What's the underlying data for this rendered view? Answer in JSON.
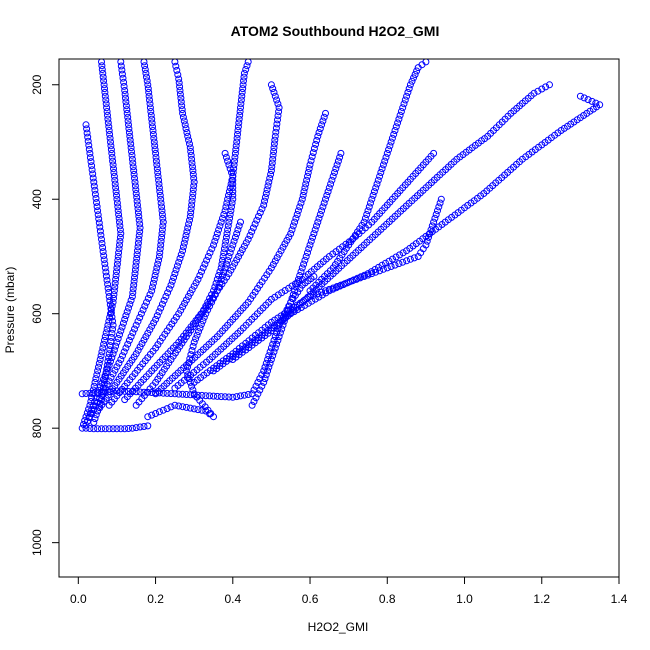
{
  "chart_data": {
    "type": "scatter",
    "title": "ATOM2 Southbound H2O2_GMI",
    "xlabel": "H2O2_GMI",
    "ylabel": "Pressure (mbar)",
    "xlim": [
      -0.05,
      1.4
    ],
    "ylim": [
      1060,
      155
    ],
    "y_reversed": true,
    "grid": false,
    "legend": "none",
    "x_ticks": [
      0.0,
      0.2,
      0.4,
      0.6,
      0.8,
      1.0,
      1.2,
      1.4
    ],
    "x_tick_labels": [
      "0.0",
      "0.2",
      "0.4",
      "0.6",
      "0.8",
      "1.0",
      "1.2",
      "1.4"
    ],
    "y_ticks": [
      200,
      400,
      600,
      800,
      1000
    ],
    "y_tick_labels": [
      "200",
      "400",
      "600",
      "800",
      "1000"
    ],
    "marker": "open-circle",
    "color": "#0000ff",
    "series": [
      {
        "values": [
          [
            0.01,
            800
          ],
          [
            0.03,
            760
          ],
          [
            0.05,
            700
          ],
          [
            0.07,
            640
          ],
          [
            0.09,
            580
          ],
          [
            0.1,
            520
          ],
          [
            0.11,
            460
          ],
          [
            0.1,
            400
          ],
          [
            0.09,
            340
          ],
          [
            0.08,
            280
          ],
          [
            0.07,
            220
          ],
          [
            0.06,
            160
          ]
        ]
      },
      {
        "values": [
          [
            0.02,
            795
          ],
          [
            0.05,
            740
          ],
          [
            0.08,
            690
          ],
          [
            0.11,
            630
          ],
          [
            0.14,
            570
          ],
          [
            0.15,
            510
          ],
          [
            0.16,
            450
          ],
          [
            0.15,
            390
          ],
          [
            0.14,
            330
          ],
          [
            0.13,
            270
          ],
          [
            0.12,
            210
          ],
          [
            0.11,
            160
          ]
        ]
      },
      {
        "values": [
          [
            0.03,
            780
          ],
          [
            0.07,
            730
          ],
          [
            0.11,
            680
          ],
          [
            0.15,
            620
          ],
          [
            0.19,
            560
          ],
          [
            0.21,
            500
          ],
          [
            0.22,
            440
          ],
          [
            0.21,
            380
          ],
          [
            0.2,
            320
          ],
          [
            0.19,
            260
          ],
          [
            0.18,
            200
          ],
          [
            0.17,
            160
          ]
        ]
      },
      {
        "values": [
          [
            0.05,
            770
          ],
          [
            0.1,
            720
          ],
          [
            0.15,
            670
          ],
          [
            0.2,
            610
          ],
          [
            0.24,
            550
          ],
          [
            0.27,
            490
          ],
          [
            0.29,
            430
          ],
          [
            0.3,
            370
          ],
          [
            0.29,
            310
          ],
          [
            0.27,
            250
          ],
          [
            0.26,
            190
          ],
          [
            0.25,
            160
          ]
        ]
      },
      {
        "values": [
          [
            0.08,
            760
          ],
          [
            0.14,
            710
          ],
          [
            0.2,
            660
          ],
          [
            0.26,
            600
          ],
          [
            0.31,
            540
          ],
          [
            0.35,
            480
          ],
          [
            0.38,
            420
          ],
          [
            0.4,
            360
          ],
          [
            0.41,
            300
          ],
          [
            0.42,
            240
          ],
          [
            0.43,
            180
          ],
          [
            0.44,
            160
          ]
        ]
      },
      {
        "values": [
          [
            0.12,
            750
          ],
          [
            0.19,
            700
          ],
          [
            0.26,
            650
          ],
          [
            0.33,
            590
          ],
          [
            0.39,
            530
          ],
          [
            0.44,
            470
          ],
          [
            0.48,
            410
          ],
          [
            0.5,
            350
          ],
          [
            0.51,
            290
          ],
          [
            0.52,
            240
          ],
          [
            0.5,
            200
          ]
        ]
      },
      {
        "values": [
          [
            0.2,
            740
          ],
          [
            0.28,
            690
          ],
          [
            0.36,
            640
          ],
          [
            0.44,
            580
          ],
          [
            0.5,
            520
          ],
          [
            0.55,
            460
          ],
          [
            0.58,
            400
          ],
          [
            0.6,
            340
          ],
          [
            0.62,
            290
          ],
          [
            0.64,
            250
          ]
        ]
      },
      {
        "values": [
          [
            0.25,
            730
          ],
          [
            0.34,
            680
          ],
          [
            0.42,
            630
          ],
          [
            0.5,
            575
          ],
          [
            0.58,
            540
          ],
          [
            0.65,
            500
          ],
          [
            0.71,
            470
          ],
          [
            0.76,
            440
          ],
          [
            0.8,
            410
          ],
          [
            0.84,
            380
          ],
          [
            0.88,
            350
          ],
          [
            0.92,
            320
          ]
        ]
      },
      {
        "values": [
          [
            0.3,
            720
          ],
          [
            0.4,
            670
          ],
          [
            0.5,
            615
          ],
          [
            0.6,
            570
          ],
          [
            0.7,
            545
          ],
          [
            0.8,
            520
          ],
          [
            0.88,
            500
          ],
          [
            0.9,
            480
          ],
          [
            0.91,
            460
          ],
          [
            0.92,
            440
          ],
          [
            0.93,
            420
          ],
          [
            0.94,
            400
          ]
        ]
      },
      {
        "values": [
          [
            0.35,
            700
          ],
          [
            0.45,
            650
          ],
          [
            0.55,
            600
          ],
          [
            0.65,
            560
          ],
          [
            0.75,
            530
          ],
          [
            0.85,
            490
          ],
          [
            0.95,
            440
          ],
          [
            1.05,
            390
          ],
          [
            1.15,
            330
          ],
          [
            1.25,
            280
          ],
          [
            1.35,
            235
          ],
          [
            1.3,
            220
          ]
        ]
      },
      {
        "values": [
          [
            0.4,
            680
          ],
          [
            0.5,
            630
          ],
          [
            0.58,
            580
          ],
          [
            0.66,
            530
          ],
          [
            0.74,
            480
          ],
          [
            0.82,
            430
          ],
          [
            0.9,
            380
          ],
          [
            0.98,
            330
          ],
          [
            1.06,
            290
          ],
          [
            1.12,
            250
          ],
          [
            1.18,
            215
          ],
          [
            1.22,
            200
          ]
        ]
      },
      {
        "values": [
          [
            0.18,
            780
          ],
          [
            0.25,
            760
          ],
          [
            0.33,
            770
          ],
          [
            0.35,
            780
          ],
          [
            0.3,
            740
          ],
          [
            0.28,
            700
          ],
          [
            0.3,
            650
          ],
          [
            0.33,
            600
          ],
          [
            0.36,
            560
          ],
          [
            0.38,
            520
          ],
          [
            0.4,
            480
          ],
          [
            0.42,
            440
          ]
        ]
      },
      {
        "values": [
          [
            0.01,
            740
          ],
          [
            0.1,
            735
          ],
          [
            0.2,
            738
          ],
          [
            0.3,
            742
          ],
          [
            0.4,
            746
          ],
          [
            0.45,
            740
          ],
          [
            0.48,
            700
          ],
          [
            0.5,
            660
          ],
          [
            0.52,
            620
          ],
          [
            0.55,
            580
          ],
          [
            0.58,
            550
          ],
          [
            0.61,
            535
          ]
        ]
      },
      {
        "values": [
          [
            0.04,
            790
          ],
          [
            0.06,
            750
          ],
          [
            0.07,
            710
          ],
          [
            0.08,
            670
          ],
          [
            0.09,
            620
          ],
          [
            0.08,
            570
          ],
          [
            0.07,
            520
          ],
          [
            0.06,
            470
          ],
          [
            0.05,
            420
          ],
          [
            0.04,
            370
          ],
          [
            0.03,
            320
          ],
          [
            0.02,
            270
          ]
        ]
      },
      {
        "values": [
          [
            0.15,
            760
          ],
          [
            0.2,
            720
          ],
          [
            0.24,
            680
          ],
          [
            0.28,
            640
          ],
          [
            0.32,
            600
          ],
          [
            0.35,
            560
          ],
          [
            0.37,
            520
          ],
          [
            0.38,
            480
          ],
          [
            0.39,
            440
          ],
          [
            0.4,
            400
          ],
          [
            0.4,
            360
          ],
          [
            0.38,
            320
          ]
        ]
      },
      {
        "values": [
          [
            0.45,
            760
          ],
          [
            0.48,
            720
          ],
          [
            0.5,
            680
          ],
          [
            0.52,
            640
          ],
          [
            0.54,
            600
          ],
          [
            0.56,
            560
          ],
          [
            0.58,
            520
          ],
          [
            0.6,
            480
          ],
          [
            0.62,
            440
          ],
          [
            0.64,
            400
          ],
          [
            0.66,
            360
          ],
          [
            0.68,
            320
          ]
        ]
      },
      {
        "values": [
          [
            0.6,
            560
          ],
          [
            0.66,
            520
          ],
          [
            0.7,
            480
          ],
          [
            0.74,
            440
          ],
          [
            0.76,
            400
          ],
          [
            0.78,
            360
          ],
          [
            0.8,
            320
          ],
          [
            0.82,
            280
          ],
          [
            0.84,
            240
          ],
          [
            0.86,
            200
          ],
          [
            0.88,
            170
          ],
          [
            0.9,
            160
          ]
        ]
      },
      {
        "values": [
          [
            0.02,
            800
          ],
          [
            0.04,
            801
          ],
          [
            0.06,
            801
          ],
          [
            0.08,
            801
          ],
          [
            0.1,
            801
          ],
          [
            0.12,
            801
          ],
          [
            0.14,
            800
          ],
          [
            0.16,
            798
          ],
          [
            0.18,
            796
          ]
        ]
      }
    ]
  }
}
